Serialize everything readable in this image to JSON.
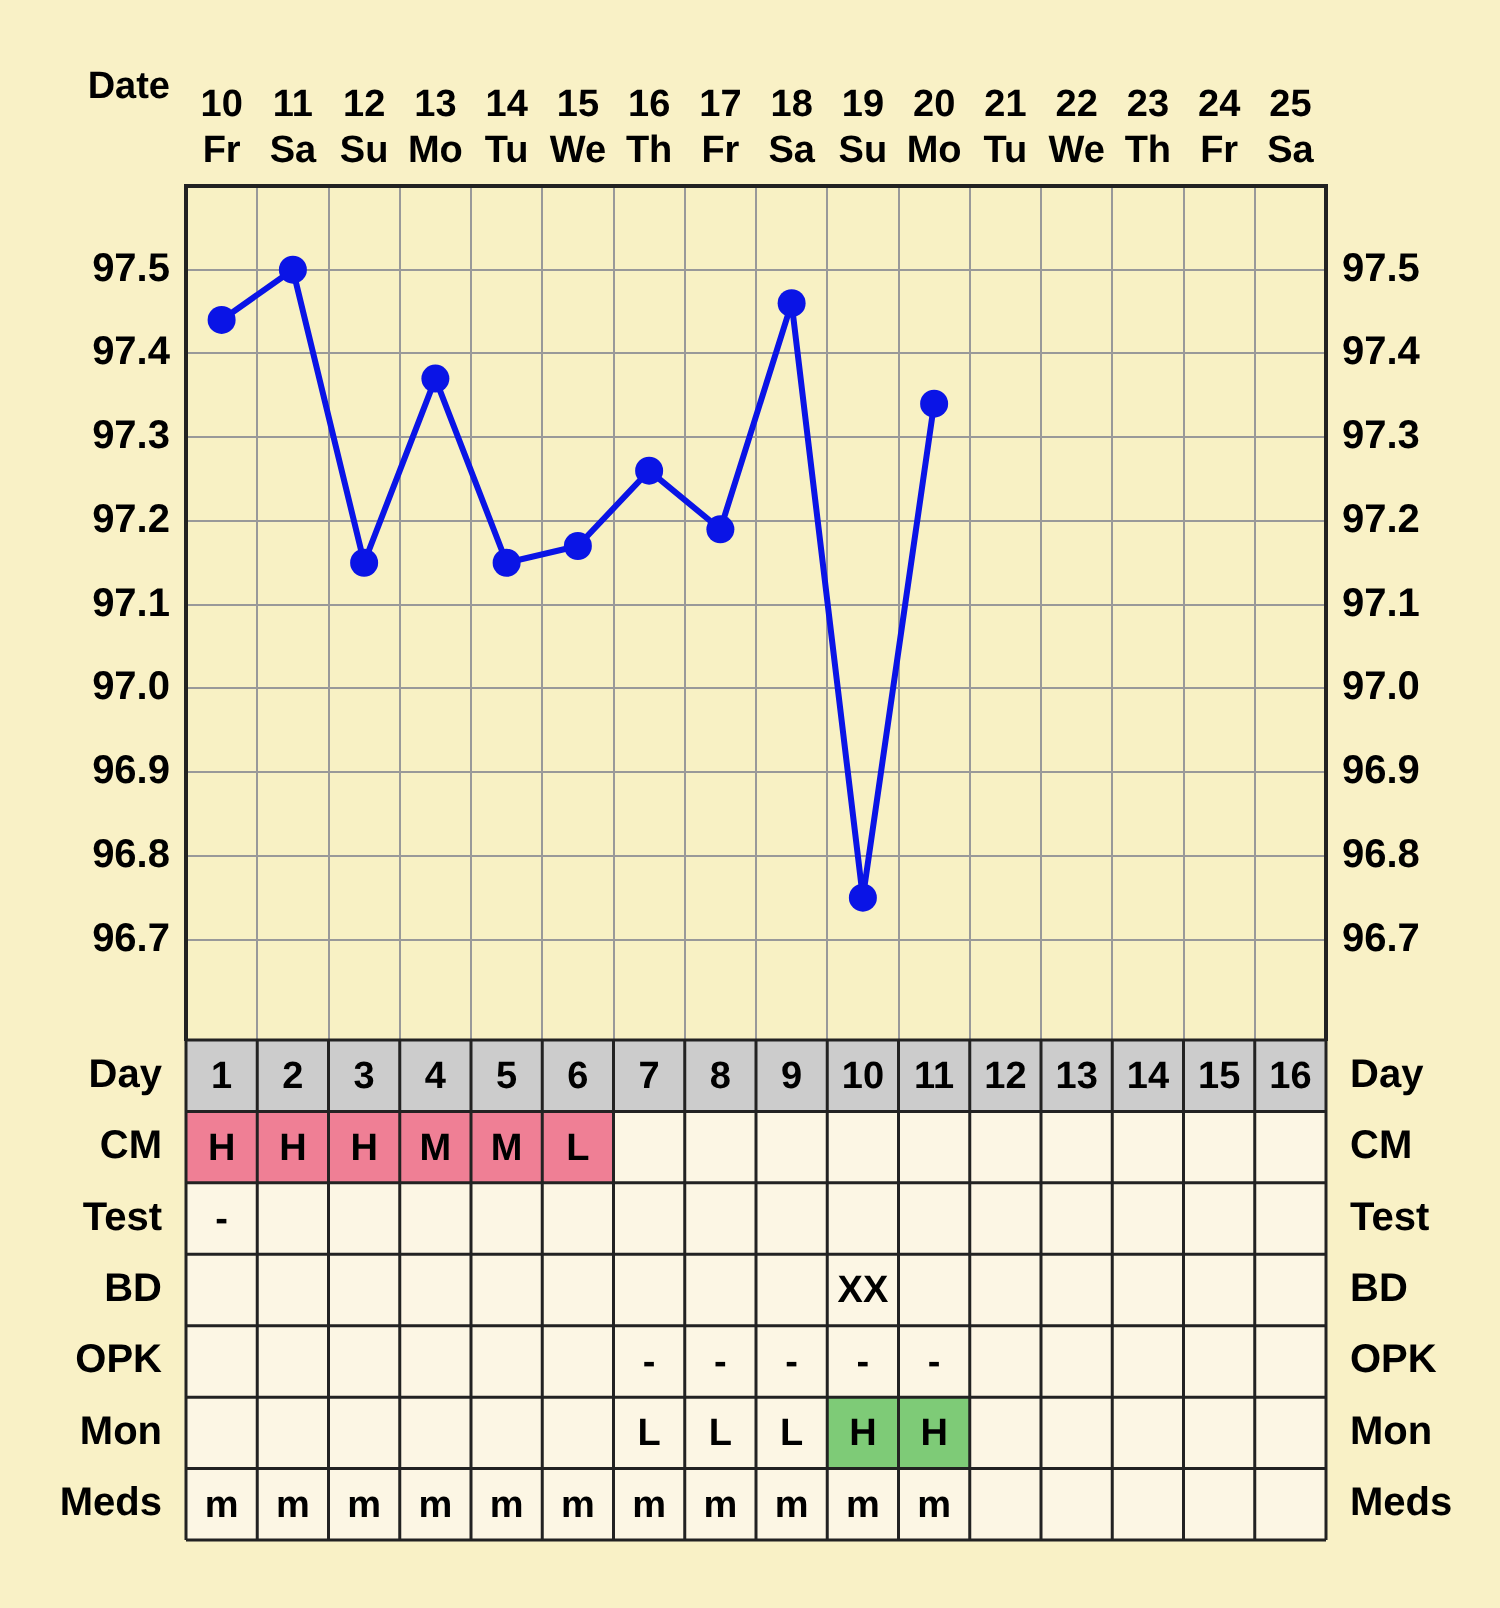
{
  "chart_data": [
    {
      "type": "line",
      "xlabel": "Date",
      "categories": [
        "10 Fr",
        "11 Sa",
        "12 Su",
        "13 Mo",
        "14 Tu",
        "15 We",
        "16 Th",
        "17 Fr",
        "18 Sa",
        "19 Su",
        "20 Mo",
        "21 Tu",
        "22 We",
        "23 Th",
        "24 Fr",
        "25 Sa"
      ],
      "series": [
        {
          "color": "#0a14e6",
          "values": [
            97.44,
            97.5,
            97.15,
            97.37,
            97.15,
            97.17,
            97.26,
            97.19,
            97.46,
            96.75,
            97.34,
            null,
            null,
            null,
            null,
            null
          ]
        }
      ],
      "ylim": [
        96.58,
        97.6
      ],
      "yticks": [
        96.7,
        96.8,
        96.9,
        {
          "value": 97,
          "label": "97.0"
        },
        97.1,
        97.2,
        97.3,
        97.4,
        97.5
      ],
      "y2lim": [
        96.58,
        97.6
      ],
      "y2ticks": [
        96.7,
        96.8,
        96.9,
        {
          "value": 97,
          "label": "97.0"
        },
        97.1,
        97.2,
        97.3,
        97.4,
        97.5
      ],
      "grid": true,
      "marker": "circle",
      "line_style": "solid"
    },
    {
      "type": "heatmap",
      "categories": [
        null,
        null,
        null,
        null,
        null,
        null,
        null,
        null,
        null,
        null,
        null,
        null,
        null,
        null,
        null,
        null
      ],
      "y_categories": [
        "Day",
        "CM",
        "Test",
        "BD",
        "OPK",
        "Mon",
        "Meds"
      ],
      "y2_categories": [
        "Day",
        "CM",
        "Test",
        "BD",
        "OPK",
        "Mon",
        "Meds"
      ],
      "tick_labels": "y",
      "cells": [
        [
          null,
          null,
          null,
          null,
          null,
          null,
          null,
          null,
          null,
          null,
          null,
          null,
          null,
          null,
          null,
          null
        ],
        [
          null,
          null,
          null,
          null,
          null,
          null,
          null,
          null,
          null,
          null,
          null,
          null,
          null,
          null,
          null,
          null
        ],
        [
          null,
          null,
          null,
          null,
          null,
          null,
          null,
          null,
          null,
          null,
          null,
          null,
          null,
          null,
          null,
          null
        ],
        [
          null,
          null,
          null,
          null,
          null,
          null,
          null,
          null,
          null,
          null,
          null,
          null,
          null,
          null,
          null,
          null
        ],
        [
          null,
          null,
          null,
          null,
          null,
          null,
          null,
          null,
          null,
          null,
          null,
          null,
          null,
          null,
          null,
          null
        ],
        [
          null,
          null,
          null,
          null,
          null,
          null,
          null,
          null,
          null,
          null,
          null,
          null,
          null,
          null,
          null,
          null
        ],
        [
          null,
          null,
          null,
          null,
          null,
          null,
          null,
          null,
          null,
          null,
          null,
          null,
          null,
          null,
          null,
          null
        ]
      ],
      "cell_labels": [
        [
          "1",
          "2",
          "3",
          "4",
          "5",
          "6",
          "7",
          "8",
          "9",
          "10",
          "11",
          "12",
          "13",
          "14",
          "15",
          "16"
        ],
        [
          "H",
          "H",
          "H",
          "M",
          "M",
          "L",
          null,
          null,
          null,
          null,
          null,
          null,
          null,
          null,
          null,
          null
        ],
        [
          "-",
          null,
          null,
          null,
          null,
          null,
          null,
          null,
          null,
          null,
          null,
          null,
          null,
          null,
          null,
          null
        ],
        [
          null,
          null,
          null,
          null,
          null,
          null,
          null,
          null,
          null,
          "XX",
          null,
          null,
          null,
          null,
          null,
          null
        ],
        [
          null,
          null,
          null,
          null,
          null,
          null,
          "-",
          "-",
          "-",
          "-",
          "-",
          null,
          null,
          null,
          null,
          null
        ],
        [
          null,
          null,
          null,
          null,
          null,
          null,
          "L",
          "L",
          "L",
          "H",
          "H",
          null,
          null,
          null,
          null,
          null
        ],
        [
          "m",
          "m",
          "m",
          "m",
          "m",
          "m",
          "m",
          "m",
          "m",
          "m",
          "m",
          null,
          null,
          null,
          null,
          null
        ]
      ],
      "colors": [
        [
          "#cccccc",
          "#cccccc",
          "#cccccc",
          "#cccccc",
          "#cccccc",
          "#cccccc",
          "#cccccc",
          "#cccccc",
          "#cccccc",
          "#cccccc",
          "#cccccc",
          "#cccccc",
          "#cccccc",
          "#cccccc",
          "#cccccc",
          "#cccccc"
        ],
        [
          "#ef7f95",
          "#ef7f95",
          "#ef7f95",
          "#ef7f95",
          "#ef7f95",
          "#ef7f95",
          "#fcf6e4",
          "#fcf6e4",
          "#fcf6e4",
          "#fcf6e4",
          "#fcf6e4",
          "#fcf6e4",
          "#fcf6e4",
          "#fcf6e4",
          "#fcf6e4",
          "#fcf6e4"
        ],
        [
          "#fcf6e4",
          "#fcf6e4",
          "#fcf6e4",
          "#fcf6e4",
          "#fcf6e4",
          "#fcf6e4",
          "#fcf6e4",
          "#fcf6e4",
          "#fcf6e4",
          "#fcf6e4",
          "#fcf6e4",
          "#fcf6e4",
          "#fcf6e4",
          "#fcf6e4",
          "#fcf6e4",
          "#fcf6e4"
        ],
        [
          "#fcf6e4",
          "#fcf6e4",
          "#fcf6e4",
          "#fcf6e4",
          "#fcf6e4",
          "#fcf6e4",
          "#fcf6e4",
          "#fcf6e4",
          "#fcf6e4",
          "#fcf6e4",
          "#fcf6e4",
          "#fcf6e4",
          "#fcf6e4",
          "#fcf6e4",
          "#fcf6e4",
          "#fcf6e4"
        ],
        [
          "#fcf6e4",
          "#fcf6e4",
          "#fcf6e4",
          "#fcf6e4",
          "#fcf6e4",
          "#fcf6e4",
          "#fcf6e4",
          "#fcf6e4",
          "#fcf6e4",
          "#fcf6e4",
          "#fcf6e4",
          "#fcf6e4",
          "#fcf6e4",
          "#fcf6e4",
          "#fcf6e4",
          "#fcf6e4"
        ],
        [
          "#fcf6e4",
          "#fcf6e4",
          "#fcf6e4",
          "#fcf6e4",
          "#fcf6e4",
          "#fcf6e4",
          "#fcf6e4",
          "#fcf6e4",
          "#fcf6e4",
          "#7ecb77",
          "#7ecb77",
          "#fcf6e4",
          "#fcf6e4",
          "#fcf6e4",
          "#fcf6e4",
          "#fcf6e4"
        ],
        [
          "#fcf6e4",
          "#fcf6e4",
          "#fcf6e4",
          "#fcf6e4",
          "#fcf6e4",
          "#fcf6e4",
          "#fcf6e4",
          "#fcf6e4",
          "#fcf6e4",
          "#fcf6e4",
          "#fcf6e4",
          "#fcf6e4",
          "#fcf6e4",
          "#fcf6e4",
          "#fcf6e4",
          "#fcf6e4"
        ]
      ]
    }
  ]
}
